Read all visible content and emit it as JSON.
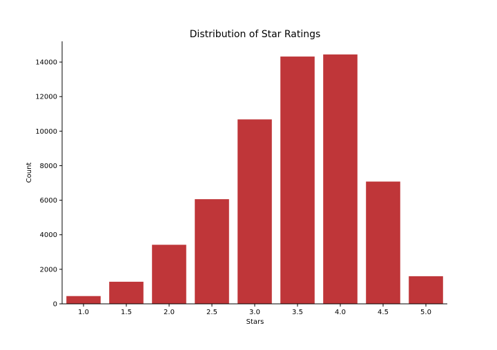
{
  "chart_data": {
    "type": "bar",
    "title": "Distribution of Star Ratings",
    "xlabel": "Stars",
    "ylabel": "Count",
    "categories": [
      "1.0",
      "1.5",
      "2.0",
      "2.5",
      "3.0",
      "3.5",
      "4.0",
      "4.5",
      "5.0"
    ],
    "values": [
      450,
      1280,
      3420,
      6060,
      10680,
      14320,
      14440,
      7080,
      1600
    ],
    "ylim": [
      0,
      15200
    ],
    "yticks": [
      0,
      2000,
      4000,
      6000,
      8000,
      10000,
      12000,
      14000
    ],
    "ytick_labels": [
      "0",
      "2000",
      "4000",
      "6000",
      "8000",
      "10000",
      "12000",
      "14000"
    ],
    "bar_color": "#bf3639",
    "grid": false,
    "legend": "none",
    "spines": "left-bottom"
  }
}
